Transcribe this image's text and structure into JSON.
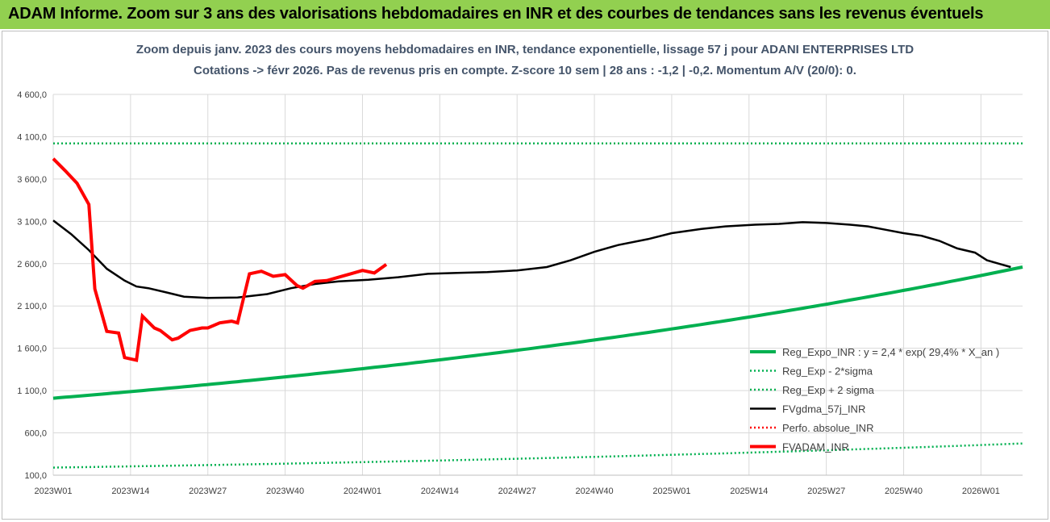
{
  "banner": {
    "title": "ADAM Informe. Zoom sur 3 ans des valorisations hebdomadaires en INR et des courbes de tendances sans les revenus éventuels",
    "background": "#92d050"
  },
  "chart_data": {
    "type": "line",
    "title_line1": "Zoom depuis janv. 2023 des cours moyens hebdomadaires en INR, tendance exponentielle, lissage 57 j pour ADANI ENTERPRISES LTD",
    "title_line2": "Cotations -> févr 2026.  Pas de revenus pris en compte. Z-score 10 sem | 28 ans : -1,2 | -0,2. Momentum A/V (20/0): 0.",
    "ylim": [
      100,
      4600
    ],
    "yticks": [
      "100,0",
      "600,0",
      "1 100,0",
      "1 600,0",
      "2 100,0",
      "2 600,0",
      "3 100,0",
      "3 600,0",
      "4 100,0",
      "4 600,0"
    ],
    "ytick_values": [
      100,
      600,
      1100,
      1600,
      2100,
      2600,
      3100,
      3600,
      4100,
      4600
    ],
    "xticks": [
      "2023W01",
      "2023W14",
      "2023W27",
      "2023W40",
      "2024W01",
      "2024W14",
      "2024W27",
      "2024W40",
      "2025W01",
      "2025W14",
      "2025W27",
      "2025W40",
      "2026W01"
    ],
    "xtick_index": [
      0,
      13,
      26,
      39,
      52,
      65,
      78,
      91,
      104,
      117,
      130,
      143,
      156
    ],
    "x_count": 164,
    "grid": true,
    "legend_position": "bottom-right",
    "series": [
      {
        "name": "Reg_Expo_INR : y = 2,4 * exp( 29,4% *  X_an )",
        "color": "#00b050",
        "style": "solid-thick",
        "exp_model": {
          "start": 1010,
          "end": 2560
        }
      },
      {
        "name": "Reg_Exp - 2*sigma",
        "color": "#00b050",
        "style": "dotted",
        "exp_model": {
          "start": 190,
          "end": 475
        }
      },
      {
        "name": "Reg_Exp + 2 sigma",
        "color": "#00b050",
        "style": "dotted",
        "exp_model": {
          "start": 4020,
          "end": 4020
        }
      },
      {
        "name": "FVgdma_57j_INR",
        "color": "#000000",
        "style": "solid",
        "points": [
          [
            0,
            3110
          ],
          [
            3,
            2950
          ],
          [
            6,
            2760
          ],
          [
            9,
            2540
          ],
          [
            12,
            2400
          ],
          [
            14,
            2330
          ],
          [
            16,
            2310
          ],
          [
            19,
            2260
          ],
          [
            22,
            2210
          ],
          [
            26,
            2195
          ],
          [
            31,
            2200
          ],
          [
            36,
            2240
          ],
          [
            40,
            2310
          ],
          [
            44,
            2360
          ],
          [
            48,
            2390
          ],
          [
            53,
            2410
          ],
          [
            58,
            2440
          ],
          [
            63,
            2480
          ],
          [
            68,
            2490
          ],
          [
            73,
            2500
          ],
          [
            78,
            2520
          ],
          [
            83,
            2560
          ],
          [
            87,
            2640
          ],
          [
            91,
            2740
          ],
          [
            95,
            2820
          ],
          [
            100,
            2890
          ],
          [
            104,
            2960
          ],
          [
            109,
            3010
          ],
          [
            113,
            3040
          ],
          [
            118,
            3060
          ],
          [
            122,
            3070
          ],
          [
            126,
            3090
          ],
          [
            130,
            3080
          ],
          [
            134,
            3060
          ],
          [
            137,
            3040
          ],
          [
            140,
            3000
          ],
          [
            143,
            2960
          ],
          [
            146,
            2930
          ],
          [
            149,
            2870
          ],
          [
            152,
            2780
          ],
          [
            155,
            2730
          ],
          [
            157,
            2640
          ],
          [
            159,
            2600
          ],
          [
            161,
            2560
          ]
        ]
      },
      {
        "name": "Perfo. absolue_INR",
        "color": "#ff0000",
        "style": "dotted",
        "points": []
      },
      {
        "name": "FVADAM_INR",
        "color": "#ff0000",
        "style": "solid-thick",
        "points": [
          [
            0,
            3840
          ],
          [
            2,
            3700
          ],
          [
            4,
            3550
          ],
          [
            6,
            3300
          ],
          [
            7,
            2300
          ],
          [
            9,
            1800
          ],
          [
            11,
            1780
          ],
          [
            12,
            1490
          ],
          [
            14,
            1460
          ],
          [
            15,
            1980
          ],
          [
            17,
            1840
          ],
          [
            18,
            1810
          ],
          [
            20,
            1700
          ],
          [
            21,
            1720
          ],
          [
            23,
            1810
          ],
          [
            25,
            1840
          ],
          [
            26,
            1840
          ],
          [
            28,
            1900
          ],
          [
            30,
            1920
          ],
          [
            31,
            1900
          ],
          [
            33,
            2480
          ],
          [
            35,
            2510
          ],
          [
            37,
            2450
          ],
          [
            39,
            2470
          ],
          [
            41,
            2340
          ],
          [
            42,
            2310
          ],
          [
            44,
            2390
          ],
          [
            46,
            2400
          ],
          [
            48,
            2440
          ],
          [
            50,
            2480
          ],
          [
            52,
            2520
          ],
          [
            54,
            2490
          ],
          [
            56,
            2590
          ]
        ]
      }
    ]
  },
  "legend": {
    "items": [
      {
        "label": "Reg_Expo_INR : y = 2,4 * exp( 29,4% *  X_an )",
        "color": "#00b050",
        "style": "solid-thick"
      },
      {
        "label": "Reg_Exp - 2*sigma",
        "color": "#00b050",
        "style": "dotted"
      },
      {
        "label": "Reg_Exp + 2 sigma",
        "color": "#00b050",
        "style": "dotted"
      },
      {
        "label": "FVgdma_57j_INR",
        "color": "#000000",
        "style": "solid"
      },
      {
        "label": "Perfo. absolue_INR",
        "color": "#ff0000",
        "style": "dotted"
      },
      {
        "label": "FVADAM_INR",
        "color": "#ff0000",
        "style": "solid-thick"
      }
    ]
  }
}
